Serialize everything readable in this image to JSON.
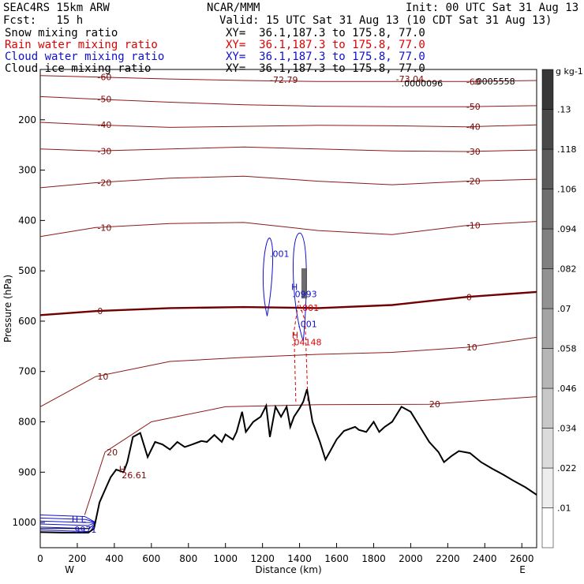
{
  "header": {
    "model": "SEAC4RS 15km ARW",
    "org": "NCAR/MMM",
    "init": "Init: 00 UTC Sat 31 Aug 13",
    "fcst": "Fcst:   15 h",
    "valid": "Valid: 15 UTC Sat 31 Aug 13 (10 CDT Sat 31 Aug 13)"
  },
  "legend": [
    {
      "name": "Snow mixing ratio",
      "xy": "XY=  36.1,187.3 to 175.8, 77.0",
      "color": "#000000"
    },
    {
      "name": "Rain water mixing ratio",
      "xy": "XY=  36.1,187.3 to 175.8, 77.0",
      "color": "#dd0000"
    },
    {
      "name": "Cloud water mixing ratio",
      "xy": "XY=  36.1,187.3 to 175.8, 77.0",
      "color": "#1010cc"
    },
    {
      "name": "Cloud ice mixing ratio",
      "xy": "XY=  36.1,187.3 to 175.8, 77.0",
      "color": "#000000"
    }
  ],
  "chart_data": {
    "type": "cross-section contour",
    "xlabel": "Distance (km)",
    "ylabel": "Pressure (hPa)",
    "xlim": [
      0,
      2680
    ],
    "ylim": [
      1050,
      100
    ],
    "x_ticks": [
      0,
      200,
      400,
      600,
      800,
      1000,
      1200,
      1400,
      1600,
      1800,
      2000,
      2200,
      2400,
      2600
    ],
    "y_ticks": [
      200,
      300,
      400,
      500,
      600,
      700,
      800,
      900,
      1000
    ],
    "end_labels": {
      "left": "W",
      "right": "E"
    },
    "temperature_isotherms": [
      {
        "value": -60,
        "label": "-60",
        "points": [
          [
            0,
            112
          ],
          [
            300,
            115
          ],
          [
            700,
            119
          ],
          [
            1100,
            122
          ],
          [
            1500,
            124
          ],
          [
            1900,
            124
          ],
          [
            2300,
            124
          ],
          [
            2680,
            122
          ]
        ]
      },
      {
        "value": -50,
        "label": "-50",
        "points": [
          [
            0,
            154
          ],
          [
            300,
            159
          ],
          [
            700,
            165
          ],
          [
            1100,
            170
          ],
          [
            1500,
            173
          ],
          [
            1900,
            174
          ],
          [
            2300,
            174
          ],
          [
            2680,
            172
          ]
        ]
      },
      {
        "value": -40,
        "label": "-40",
        "points": [
          [
            0,
            205
          ],
          [
            300,
            210
          ],
          [
            700,
            215
          ],
          [
            1100,
            213
          ],
          [
            1500,
            211
          ],
          [
            1900,
            212
          ],
          [
            2300,
            214
          ],
          [
            2680,
            210
          ]
        ]
      },
      {
        "value": -30,
        "label": "-30",
        "points": [
          [
            0,
            258
          ],
          [
            300,
            262
          ],
          [
            700,
            258
          ],
          [
            1100,
            254
          ],
          [
            1500,
            258
          ],
          [
            1900,
            262
          ],
          [
            2300,
            263
          ],
          [
            2680,
            260
          ]
        ]
      },
      {
        "value": -20,
        "label": "-20",
        "points": [
          [
            0,
            335
          ],
          [
            300,
            325
          ],
          [
            700,
            316
          ],
          [
            1100,
            312
          ],
          [
            1500,
            322
          ],
          [
            1900,
            329
          ],
          [
            2300,
            322
          ],
          [
            2680,
            318
          ]
        ]
      },
      {
        "value": -10,
        "label": "-10",
        "points": [
          [
            0,
            432
          ],
          [
            300,
            414
          ],
          [
            700,
            406
          ],
          [
            1100,
            404
          ],
          [
            1500,
            420
          ],
          [
            1900,
            428
          ],
          [
            2300,
            410
          ],
          [
            2680,
            402
          ]
        ]
      },
      {
        "value": 0,
        "label": "0",
        "points": [
          [
            0,
            588
          ],
          [
            300,
            580
          ],
          [
            700,
            574
          ],
          [
            1100,
            572
          ],
          [
            1500,
            574
          ],
          [
            1900,
            568
          ],
          [
            2300,
            552
          ],
          [
            2680,
            542
          ]
        ]
      },
      {
        "value": 10,
        "label": "10",
        "points": [
          [
            0,
            770
          ],
          [
            300,
            710
          ],
          [
            700,
            680
          ],
          [
            1100,
            672
          ],
          [
            1500,
            666
          ],
          [
            1900,
            662
          ],
          [
            2300,
            652
          ],
          [
            2680,
            632
          ]
        ]
      },
      {
        "value": 20,
        "label": "20",
        "points": [
          [
            240,
            985
          ],
          [
            350,
            860
          ],
          [
            600,
            800
          ],
          [
            1000,
            770
          ],
          [
            1500,
            766
          ],
          [
            2100,
            765
          ],
          [
            2680,
            750
          ]
        ]
      }
    ],
    "terrain": [
      [
        0,
        1019
      ],
      [
        120,
        1020
      ],
      [
        260,
        1020
      ],
      [
        290,
        1012
      ],
      [
        320,
        960
      ],
      [
        350,
        935
      ],
      [
        380,
        910
      ],
      [
        410,
        895
      ],
      [
        450,
        900
      ],
      [
        470,
        880
      ],
      [
        500,
        830
      ],
      [
        540,
        822
      ],
      [
        580,
        870
      ],
      [
        620,
        840
      ],
      [
        660,
        845
      ],
      [
        700,
        855
      ],
      [
        740,
        840
      ],
      [
        780,
        850
      ],
      [
        820,
        845
      ],
      [
        870,
        838
      ],
      [
        900,
        840
      ],
      [
        940,
        826
      ],
      [
        980,
        840
      ],
      [
        1000,
        825
      ],
      [
        1040,
        835
      ],
      [
        1060,
        820
      ],
      [
        1090,
        780
      ],
      [
        1110,
        820
      ],
      [
        1150,
        800
      ],
      [
        1190,
        790
      ],
      [
        1220,
        768
      ],
      [
        1240,
        830
      ],
      [
        1270,
        770
      ],
      [
        1300,
        790
      ],
      [
        1330,
        770
      ],
      [
        1350,
        810
      ],
      [
        1370,
        790
      ],
      [
        1400,
        773
      ],
      [
        1420,
        760
      ],
      [
        1440,
        735
      ],
      [
        1470,
        800
      ],
      [
        1510,
        840
      ],
      [
        1540,
        875
      ],
      [
        1570,
        855
      ],
      [
        1600,
        835
      ],
      [
        1640,
        818
      ],
      [
        1700,
        810
      ],
      [
        1720,
        816
      ],
      [
        1760,
        820
      ],
      [
        1800,
        800
      ],
      [
        1830,
        820
      ],
      [
        1860,
        810
      ],
      [
        1900,
        800
      ],
      [
        1950,
        770
      ],
      [
        2000,
        780
      ],
      [
        2050,
        810
      ],
      [
        2100,
        840
      ],
      [
        2150,
        860
      ],
      [
        2180,
        880
      ],
      [
        2220,
        868
      ],
      [
        2260,
        858
      ],
      [
        2320,
        862
      ],
      [
        2380,
        880
      ],
      [
        2440,
        893
      ],
      [
        2500,
        905
      ],
      [
        2560,
        918
      ],
      [
        2620,
        930
      ],
      [
        2680,
        945
      ]
    ],
    "annotations": [
      {
        "text": "-72.79",
        "x": 1240,
        "y": 127,
        "color": "#7a0a0a"
      },
      {
        "text": "-73.04",
        "x": 1920,
        "y": 125,
        "color": "#7a0a0a"
      },
      {
        "text": ".0000096",
        "x": 1950,
        "y": 134,
        "color": "#000000"
      },
      {
        "text": ".0005558",
        "x": 2340,
        "y": 130,
        "color": "#000000"
      },
      {
        "text": ".001",
        "x": 1240,
        "y": 472,
        "color": "#1010cc"
      },
      {
        "text": "H",
        "x": 1355,
        "y": 538,
        "color": "#1010cc"
      },
      {
        "text": ".0993",
        "x": 1360,
        "y": 552,
        "color": "#1010cc"
      },
      {
        "text": ".001",
        "x": 1400,
        "y": 580,
        "color": "#dd0000"
      },
      {
        "text": ".001",
        "x": 1390,
        "y": 612,
        "color": "#1010cc"
      },
      {
        "text": "H",
        "x": 1358,
        "y": 634,
        "color": "#dd0000"
      },
      {
        "text": ".04148",
        "x": 1355,
        "y": 648,
        "color": "#dd0000"
      },
      {
        "text": "H",
        "x": 425,
        "y": 900,
        "color": "#7a0a0a"
      },
      {
        "text": "26.61",
        "x": 440,
        "y": 912,
        "color": "#7a0a0a"
      },
      {
        "text": "H L",
        "x": 170,
        "y": 1000,
        "color": "#1010cc"
      },
      {
        "text": ".9971",
        "x": 170,
        "y": 1020,
        "color": "#1010cc"
      }
    ],
    "colorbar": {
      "units": "g kg-1",
      "levels": [
        ".01",
        ".022",
        ".034",
        ".046",
        ".058",
        ".07",
        ".082",
        ".094",
        ".106",
        ".118",
        ".13"
      ]
    }
  }
}
